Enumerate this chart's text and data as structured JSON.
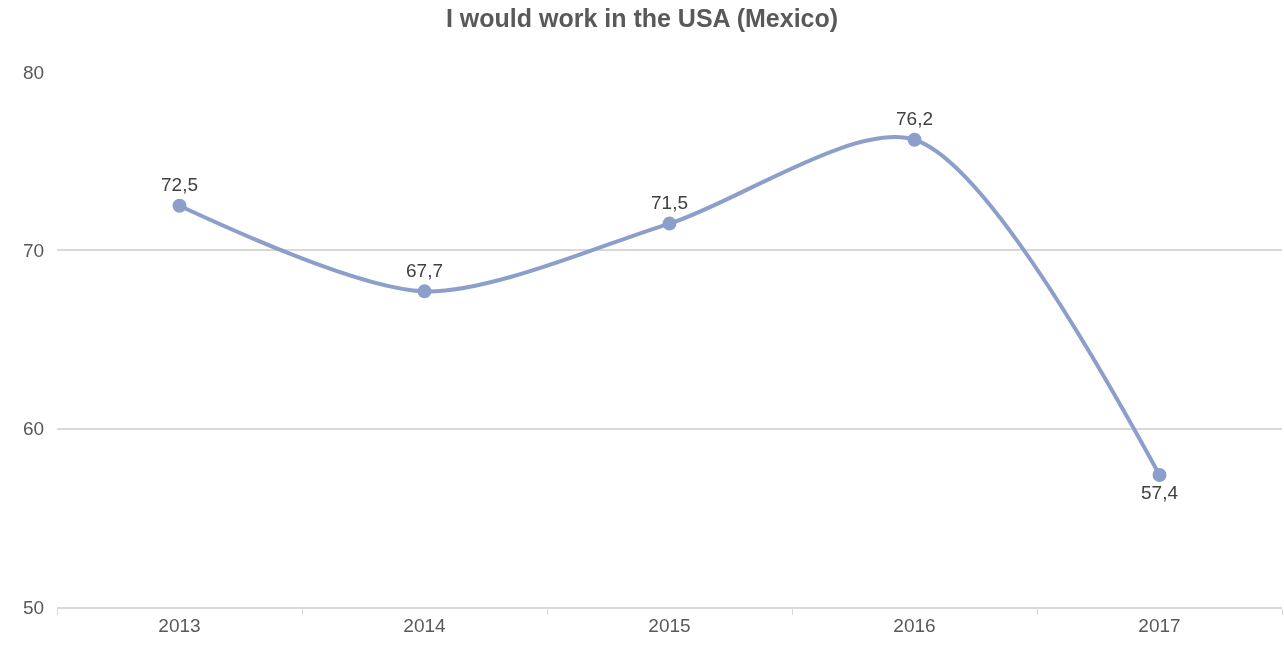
{
  "chart_data": {
    "type": "line",
    "title": "I would work in the USA (Mexico)",
    "categories": [
      "2013",
      "2014",
      "2015",
      "2016",
      "2017"
    ],
    "series": [
      {
        "color": "#8c9fcb",
        "values": [
          72.5,
          67.7,
          71.5,
          76.2,
          57.4
        ],
        "value_labels": [
          "72,5",
          "67,7",
          "71,5",
          "76,2",
          "57,4"
        ]
      }
    ],
    "ylim": [
      50,
      80
    ],
    "yticks": [
      50,
      60,
      70,
      80
    ],
    "grid": "y",
    "marker": "circle",
    "line_style": "solid"
  }
}
